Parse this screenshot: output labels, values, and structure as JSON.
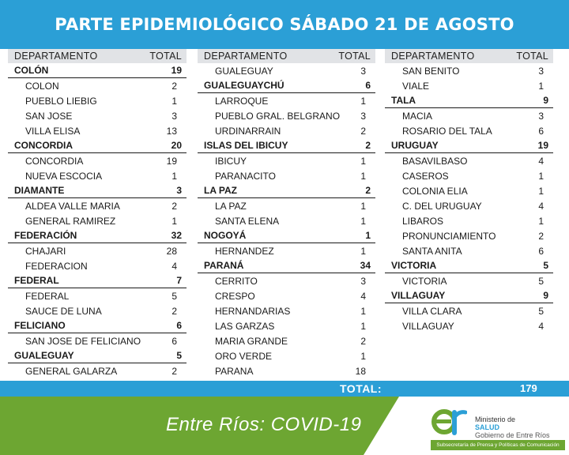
{
  "header": {
    "title": "PARTE EPIDEMIOLÓGICO SÁBADO 21 DE AGOSTO"
  },
  "columns_header": {
    "dept": "DEPARTAMENTO",
    "total": "TOTAL"
  },
  "col1": [
    {
      "name": "COLÓN",
      "value": "19",
      "kind": "dept"
    },
    {
      "name": "COLON",
      "value": "2",
      "kind": "sub"
    },
    {
      "name": "PUEBLO LIEBIG",
      "value": "1",
      "kind": "sub"
    },
    {
      "name": "SAN JOSE",
      "value": "3",
      "kind": "sub"
    },
    {
      "name": "VILLA ELISA",
      "value": "13",
      "kind": "sub"
    },
    {
      "name": "CONCORDIA",
      "value": "20",
      "kind": "dept"
    },
    {
      "name": "CONCORDIA",
      "value": "19",
      "kind": "sub"
    },
    {
      "name": "NUEVA ESCOCIA",
      "value": "1",
      "kind": "sub"
    },
    {
      "name": "DIAMANTE",
      "value": "3",
      "kind": "dept"
    },
    {
      "name": "ALDEA VALLE MARIA",
      "value": "2",
      "kind": "sub"
    },
    {
      "name": "GENERAL RAMIREZ",
      "value": "1",
      "kind": "sub"
    },
    {
      "name": "FEDERACIÓN",
      "value": "32",
      "kind": "dept"
    },
    {
      "name": "CHAJARI",
      "value": "28",
      "kind": "sub"
    },
    {
      "name": "FEDERACION",
      "value": "4",
      "kind": "sub"
    },
    {
      "name": "FEDERAL",
      "value": "7",
      "kind": "dept"
    },
    {
      "name": "FEDERAL",
      "value": "5",
      "kind": "sub"
    },
    {
      "name": "SAUCE DE LUNA",
      "value": "2",
      "kind": "sub"
    },
    {
      "name": "FELICIANO",
      "value": "6",
      "kind": "dept"
    },
    {
      "name": "SAN JOSE DE FELICIANO",
      "value": "6",
      "kind": "sub"
    },
    {
      "name": "GUALEGUAY",
      "value": "5",
      "kind": "dept"
    },
    {
      "name": "GENERAL GALARZA",
      "value": "2",
      "kind": "sub"
    }
  ],
  "col2": [
    {
      "name": "GUALEGUAY",
      "value": "3",
      "kind": "sub"
    },
    {
      "name": "GUALEGUAYCHÚ",
      "value": "6",
      "kind": "dept"
    },
    {
      "name": "LARROQUE",
      "value": "1",
      "kind": "sub"
    },
    {
      "name": "PUEBLO GRAL. BELGRANO",
      "value": "3",
      "kind": "sub"
    },
    {
      "name": "URDINARRAIN",
      "value": "2",
      "kind": "sub"
    },
    {
      "name": "ISLAS DEL IBICUY",
      "value": "2",
      "kind": "dept"
    },
    {
      "name": "IBICUY",
      "value": "1",
      "kind": "sub"
    },
    {
      "name": "PARANACITO",
      "value": "1",
      "kind": "sub"
    },
    {
      "name": "LA PAZ",
      "value": "2",
      "kind": "dept"
    },
    {
      "name": "LA PAZ",
      "value": "1",
      "kind": "sub"
    },
    {
      "name": "SANTA ELENA",
      "value": "1",
      "kind": "sub"
    },
    {
      "name": "NOGOYÁ",
      "value": "1",
      "kind": "dept"
    },
    {
      "name": "HERNANDEZ",
      "value": "1",
      "kind": "sub"
    },
    {
      "name": "PARANÁ",
      "value": "34",
      "kind": "dept"
    },
    {
      "name": "CERRITO",
      "value": "3",
      "kind": "sub"
    },
    {
      "name": "CRESPO",
      "value": "4",
      "kind": "sub"
    },
    {
      "name": "HERNANDARIAS",
      "value": "1",
      "kind": "sub"
    },
    {
      "name": "LAS GARZAS",
      "value": "1",
      "kind": "sub"
    },
    {
      "name": "MARIA GRANDE",
      "value": "2",
      "kind": "sub"
    },
    {
      "name": "ORO VERDE",
      "value": "1",
      "kind": "sub"
    },
    {
      "name": "PARANA",
      "value": "18",
      "kind": "sub"
    }
  ],
  "col3": [
    {
      "name": "SAN BENITO",
      "value": "3",
      "kind": "sub"
    },
    {
      "name": "VIALE",
      "value": "1",
      "kind": "sub"
    },
    {
      "name": "TALA",
      "value": "9",
      "kind": "dept"
    },
    {
      "name": "MACIA",
      "value": "3",
      "kind": "sub"
    },
    {
      "name": "ROSARIO DEL TALA",
      "value": "6",
      "kind": "sub"
    },
    {
      "name": "URUGUAY",
      "value": "19",
      "kind": "dept"
    },
    {
      "name": "BASAVILBASO",
      "value": "4",
      "kind": "sub"
    },
    {
      "name": "CASEROS",
      "value": "1",
      "kind": "sub"
    },
    {
      "name": "COLONIA ELIA",
      "value": "1",
      "kind": "sub"
    },
    {
      "name": "C. DEL URUGUAY",
      "value": "4",
      "kind": "sub"
    },
    {
      "name": "LIBAROS",
      "value": "1",
      "kind": "sub"
    },
    {
      "name": "PRONUNCIAMIENTO",
      "value": "2",
      "kind": "sub"
    },
    {
      "name": "SANTA ANITA",
      "value": "6",
      "kind": "sub"
    },
    {
      "name": "VICTORIA",
      "value": "5",
      "kind": "dept"
    },
    {
      "name": "VICTORIA",
      "value": "5",
      "kind": "sub"
    },
    {
      "name": "VILLAGUAY",
      "value": "9",
      "kind": "dept"
    },
    {
      "name": "VILLA CLARA",
      "value": "5",
      "kind": "sub"
    },
    {
      "name": "VILLAGUAY",
      "value": "4",
      "kind": "sub"
    }
  ],
  "total": {
    "label": "TOTAL:",
    "value": "179"
  },
  "footer": {
    "tagline": "Entre Ríos: COVID-19",
    "ministry_line1": "Ministerio de",
    "ministry_line2": "SALUD",
    "ministry_line3": "Gobierno de Entre Ríos",
    "subsecretaria": "Subsecretaría de Prensa y Políticas de Comunicación"
  },
  "colors": {
    "header_blue": "#2b9fd6",
    "footer_green": "#6da632",
    "column_header_gray": "#e1e3e6"
  }
}
